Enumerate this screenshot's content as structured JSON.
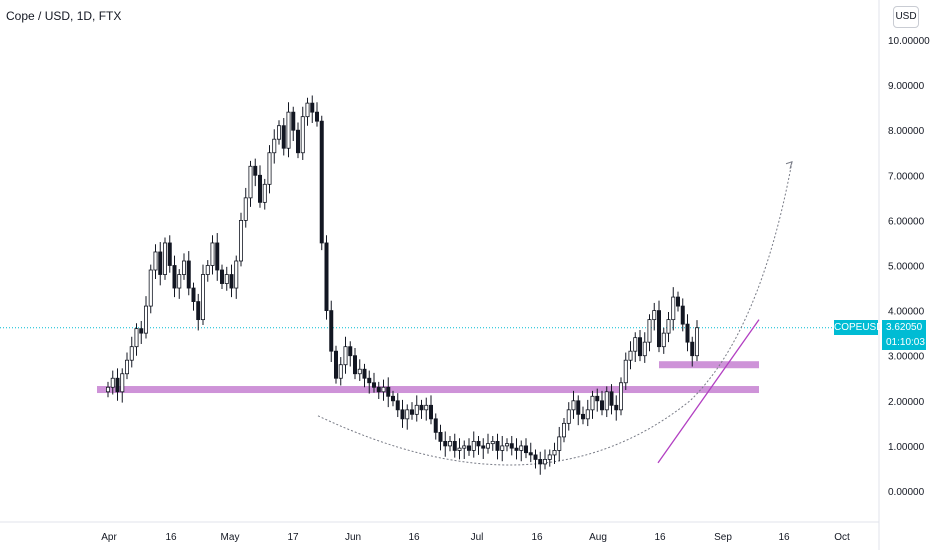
{
  "header": {
    "title": "Cope / USD, 1D, FTX"
  },
  "scale_button": "USD",
  "last_price": {
    "symbol": "COPEUSD",
    "price": "3.62050",
    "countdown": "01:10:03"
  },
  "colors": {
    "up": "#26a69a",
    "down": "#ef5350",
    "candle": "#131722",
    "zone": "#ce93d8",
    "trend": "#b23fc2",
    "last_line": "#00bcd4"
  },
  "chart_data": {
    "type": "candlestick",
    "y_ticks": [
      "10.00000",
      "9.00000",
      "8.00000",
      "7.00000",
      "6.00000",
      "5.00000",
      "4.00000",
      "3.00000",
      "2.00000",
      "1.00000",
      "0.00000"
    ],
    "y_tick_values": [
      10,
      9,
      8,
      7,
      6,
      5,
      4,
      3,
      2,
      1,
      0
    ],
    "x_ticks": [
      "Apr",
      "16",
      "May",
      "17",
      "Jun",
      "16",
      "Jul",
      "16",
      "Aug",
      "16",
      "Sep",
      "16",
      "Oct"
    ],
    "closes": [
      2.3,
      2.5,
      2.2,
      2.6,
      2.9,
      3.2,
      3.6,
      3.5,
      4.1,
      4.9,
      5.3,
      4.8,
      5.5,
      5.0,
      4.5,
      4.8,
      5.1,
      4.5,
      4.2,
      3.8,
      4.8,
      5.0,
      5.5,
      4.9,
      4.6,
      4.8,
      4.5,
      5.1,
      6.0,
      6.5,
      7.2,
      7.0,
      6.4,
      6.8,
      7.5,
      7.8,
      8.1,
      7.6,
      8.4,
      8.0,
      7.5,
      8.3,
      8.6,
      8.4,
      8.2,
      5.5,
      4.0,
      3.1,
      2.5,
      2.8,
      3.2,
      3.0,
      2.6,
      2.7,
      2.5,
      2.4,
      2.3,
      2.2,
      2.3,
      2.1,
      2.0,
      1.8,
      1.6,
      1.8,
      1.7,
      1.9,
      1.8,
      1.9,
      1.6,
      1.3,
      1.1,
      1.0,
      1.1,
      0.9,
      0.95,
      1.0,
      0.9,
      1.1,
      1.0,
      0.95,
      1.05,
      1.1,
      0.9,
      1.0,
      1.05,
      0.95,
      0.9,
      1.0,
      0.85,
      0.8,
      0.7,
      0.6,
      0.7,
      0.8,
      0.9,
      1.2,
      1.5,
      1.8,
      2.0,
      1.7,
      1.6,
      1.8,
      2.1,
      2.0,
      1.8,
      2.2,
      1.9,
      1.8,
      2.4,
      2.9,
      3.1,
      3.4,
      3.0,
      3.3,
      3.8,
      4.0,
      3.2,
      3.5,
      3.8,
      4.3,
      4.1,
      3.7,
      3.3,
      3.0,
      3.62
    ],
    "levels": [
      {
        "name": "support-zone-upper",
        "value": 2.8
      },
      {
        "name": "support-zone-lower",
        "value": 2.25
      }
    ],
    "trendline": {
      "from": [
        104,
        0.8
      ],
      "to": [
        155,
        3.8
      ]
    },
    "projection": {
      "from_value": 2.0,
      "bottom_value": 0.55,
      "target_value": 7.3
    },
    "last_value": 3.6205
  }
}
